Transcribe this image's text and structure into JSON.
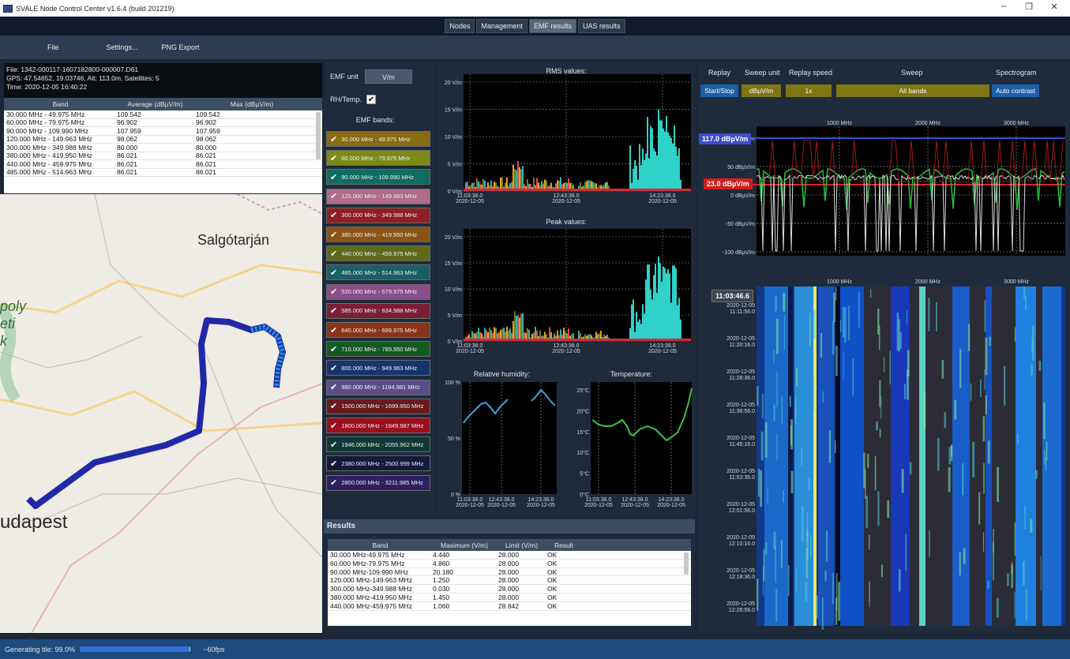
{
  "window": {
    "title": "SVALE Node Control Center v1.6.4 (build 201219)",
    "min": "–",
    "max": "❐",
    "close": "✕"
  },
  "tabs": [
    {
      "label": "Nodes"
    },
    {
      "label": "Management"
    },
    {
      "label": "EMF results",
      "active": true
    },
    {
      "label": "UAS results"
    }
  ],
  "menu": {
    "file": "File",
    "settings": "Settings...",
    "png": "PNG Export"
  },
  "fileinfo": {
    "file": "File: 1342-000117-1607182800-000007.D61",
    "gps": "GPS: 47.54652, 19.03746, Alt: 113.0m, Satellites: 5",
    "time": "Time: 2020-12-05 16:40:22"
  },
  "bandtable": {
    "headers": [
      "Band",
      "Average (dBµV/m)",
      "Max (dBµV/m)"
    ],
    "rows": [
      [
        "30.000 MHz - 49.975 MHz",
        "109.542",
        "109.542"
      ],
      [
        "60.000 MHz - 79.975 MHz",
        "96.902",
        "96.902"
      ],
      [
        "90.000 MHz - 109.990 MHz",
        "107.959",
        "107.959"
      ],
      [
        "120.000 MHz - 149.963 MHz",
        "98.062",
        "98.062"
      ],
      [
        "300.000 MHz - 349.988 MHz",
        "80.000",
        "80.000"
      ],
      [
        "380.000 MHz - 419.950 MHz",
        "86.021",
        "86.021"
      ],
      [
        "440.000 MHz - 459.975 MHz",
        "86.021",
        "86.021"
      ],
      [
        "485.000 MHz - 514.963 MHz",
        "86.021",
        "86.021"
      ]
    ]
  },
  "map": {
    "labels": [
      {
        "text": "Salgótarján"
      },
      {
        "text": "poly"
      },
      {
        "text": "eti"
      },
      {
        "text": "k"
      },
      {
        "text": "udapest"
      }
    ]
  },
  "emf": {
    "unit_label": "EMF unit",
    "unit_value": "V/m",
    "rh_label": "RH/Temp.",
    "rh_checked": "✔",
    "bands_title": "EMF bands:",
    "bands": [
      {
        "label": "30.000 MHz - 49.975 MHz",
        "color": "#8a6a12"
      },
      {
        "label": "60.000 MHz - 79.975 MHz",
        "color": "#7e8a18"
      },
      {
        "label": "90.000 MHz - 109.990 MHz",
        "color": "#0f6d62"
      },
      {
        "label": "120.000 MHz - 149.963 MHz",
        "color": "#b06b8a"
      },
      {
        "label": "300.000 MHz - 349.988 MHz",
        "color": "#8f1f22"
      },
      {
        "label": "380.000 MHz - 419.950 MHz",
        "color": "#8a5514"
      },
      {
        "label": "440.000 MHz - 459.975 MHz",
        "color": "#5c6a1a"
      },
      {
        "label": "485.000 MHz - 514.963 MHz",
        "color": "#1a5e66"
      },
      {
        "label": "520.000 MHz - 579.975 MHz",
        "color": "#8a4e8a"
      },
      {
        "label": "585.000 MHz - 634.988 MHz",
        "color": "#7a1e36"
      },
      {
        "label": "640.000 MHz - 699.975 MHz",
        "color": "#8a3318"
      },
      {
        "label": "710.000 MHz - 789.950 MHz",
        "color": "#145a22"
      },
      {
        "label": "800.000 MHz - 949.963 MHz",
        "color": "#16356e"
      },
      {
        "label": "980.000 MHz - 1194.981 MHz",
        "color": "#5a4e8a"
      },
      {
        "label": "1500.000 MHz - 1699.950 MHz",
        "color": "#6a1a1e"
      },
      {
        "label": "1800.000 MHz - 1849.987 MHz",
        "color": "#9a0e1e"
      },
      {
        "label": "1946.000 MHz - 2055.962 MHz",
        "color": "#0f3a36"
      },
      {
        "label": "2380.000 MHz - 2500.999 MHz",
        "color": "#141a3a"
      },
      {
        "label": "2800.000 MHz - 3211.985 MHz",
        "color": "#2e2060"
      }
    ]
  },
  "charts": {
    "rms_title": "RMS values:",
    "peak_title": "Peak values:",
    "y_ticks": [
      "20 V/m",
      "15 V/m",
      "10 V/m",
      "5 V/m",
      "0 V/m"
    ],
    "x_ticks": [
      {
        "t": "11:03:38.0",
        "d": "2020-12-05"
      },
      {
        "t": "12:43:38.0",
        "d": "2020-12-05"
      },
      {
        "t": "14:23:38.0",
        "d": "2020-12-05"
      }
    ],
    "rh_title": "Relative humidity:",
    "rh_ticks": [
      "100 %",
      "50 %",
      "0 %"
    ],
    "temp_title": "Temperature:",
    "temp_ticks": [
      "25°C",
      "20°C",
      "15°C",
      "10°C",
      "5°C",
      "0°C"
    ]
  },
  "results": {
    "title": "Results",
    "headers": [
      "Band",
      "Maximum (V/m)",
      "Limit (V/m)",
      "Result"
    ],
    "rows": [
      [
        "30.000 MHz-49.975 MHz",
        "4.440",
        "28.000",
        "OK"
      ],
      [
        "60.000 MHz-79.975 MHz",
        "4.860",
        "28.000",
        "OK"
      ],
      [
        "90.000 MHz-109.990 MHz",
        "20.180",
        "28.000",
        "OK"
      ],
      [
        "120.000 MHz-149.963 MHz",
        "1.250",
        "28.000",
        "OK"
      ],
      [
        "300.000 MHz-349.988 MHz",
        "0.030",
        "28.000",
        "OK"
      ],
      [
        "380.000 MHz-419.950 MHz",
        "1.450",
        "28.000",
        "OK"
      ],
      [
        "440.000 MHz-459.975 MHz",
        "1.060",
        "28.842",
        "OK"
      ]
    ]
  },
  "replay": {
    "replay_label": "Replay",
    "start_stop": "Start/Stop",
    "sweep_unit_label": "Sweep unit",
    "sweep_unit": "dBµV/m",
    "speed_label": "Replay speed",
    "speed": "1x",
    "sweep_label": "Sweep",
    "sweep": "All bands",
    "spectro_label": "Spectrogram",
    "auto": "Auto contrast"
  },
  "spectrum": {
    "freq_ticks": [
      "1000 MHz",
      "2000 MHz",
      "3000 MHz"
    ],
    "y_ticks": [
      "100 dBµV/m",
      "50 dBµV/m",
      "0 dBµV/m",
      "-50 dBµV/m",
      "-100 dBµV/m"
    ],
    "max_badge": "117.0 dBµV/m",
    "min_badge": "23.0 dBµV/m"
  },
  "spectrogram": {
    "freq_ticks": [
      "1000 MHz",
      "2000 MHz",
      "3000 MHz"
    ],
    "time_badge": "11:03:46.6",
    "times": [
      {
        "d": "2020-12-05",
        "t": "11:11:56.0"
      },
      {
        "d": "2020-12-05",
        "t": "11:20:16.0"
      },
      {
        "d": "2020-12-05",
        "t": "11:28:36.0"
      },
      {
        "d": "2020-12-05",
        "t": "11:36:56.0"
      },
      {
        "d": "2020-12-05",
        "t": "11:45:16.0"
      },
      {
        "d": "2020-12-05",
        "t": "11:53:36.0"
      },
      {
        "d": "2020-12-05",
        "t": "12:01:56.0"
      },
      {
        "d": "2020-12-05",
        "t": "12:10:16.0"
      },
      {
        "d": "2020-12-05",
        "t": "12:18:36.0"
      },
      {
        "d": "2020-12-05",
        "t": "12:26:56.0"
      }
    ]
  },
  "status": {
    "text": "Generating tile: 99.0%",
    "progress": 0.99,
    "fps": "~60fps"
  }
}
